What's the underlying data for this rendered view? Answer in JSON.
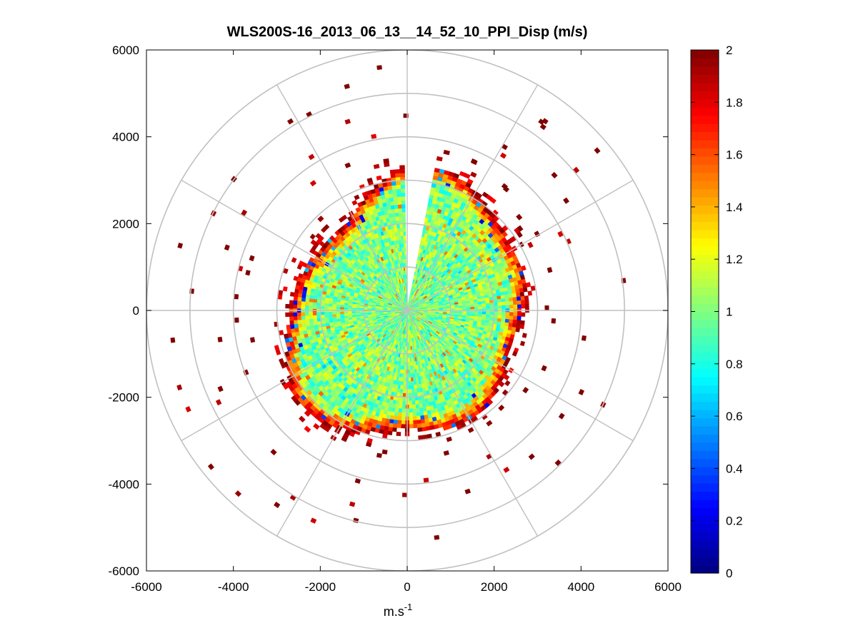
{
  "chart_data": {
    "type": "heatmap",
    "subtype": "polar-ppi",
    "title": "WLS200S-16_2013_06_13__14_52_10_PPI_Disp (m/s)",
    "xlabel": "m.s",
    "xlabel_superscript": "-1",
    "ylabel": "",
    "xlim": [
      -6000,
      6000
    ],
    "ylim": [
      -6000,
      6000
    ],
    "x_ticks": [
      -6000,
      -4000,
      -2000,
      0,
      2000,
      4000,
      6000
    ],
    "y_ticks": [
      6000,
      4000,
      2000,
      0,
      -2000,
      -4000,
      -6000
    ],
    "x_tick_labels": [
      "-6000",
      "-4000",
      "-2000",
      "0",
      "2000",
      "4000",
      "6000"
    ],
    "y_tick_labels": [
      "6000",
      "4000",
      "2000",
      "0",
      "-2000",
      "-4000",
      "-6000"
    ],
    "polar_grid": {
      "ring_radii": [
        1000,
        2000,
        3000,
        4000,
        5000,
        6000
      ],
      "spoke_angles_deg": [
        0,
        30,
        60,
        90,
        120,
        150,
        180,
        210,
        240,
        270,
        300,
        330
      ]
    },
    "data_gap": {
      "start_azimuth_deg": 0,
      "end_azimuth_deg": 12,
      "note": "no data in narrow sector north-north-east"
    },
    "data_range_m": [
      0,
      3400
    ],
    "colorbar": {
      "colormap": "jet",
      "clim": [
        0,
        2
      ],
      "tick_values": [
        0,
        0.2,
        0.4,
        0.6,
        0.8,
        1,
        1.2,
        1.4,
        1.6,
        1.8,
        2
      ],
      "tick_labels": [
        "0",
        "0.2",
        "0.4",
        "0.6",
        "0.8",
        "1",
        "1.2",
        "1.4",
        "1.6",
        "1.8",
        "2"
      ]
    },
    "typical_value": 1.0,
    "outer_edge_value": 2.0
  }
}
